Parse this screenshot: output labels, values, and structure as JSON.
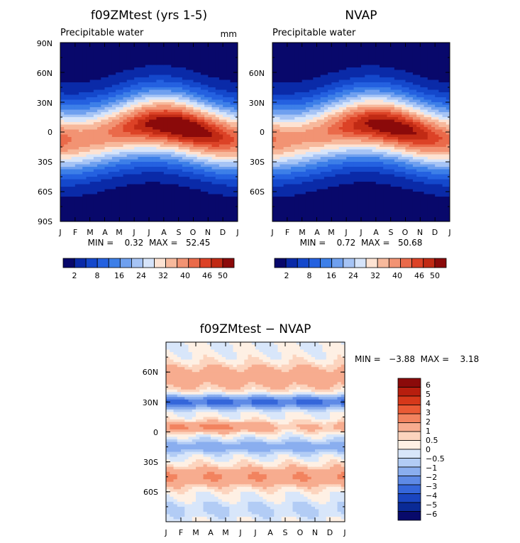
{
  "chart_data": [
    {
      "type": "heatmap",
      "title": "f09ZMtest (yrs 1-5)",
      "subtitle": "Precipitable water",
      "units": "mm",
      "x_ticks": [
        "J",
        "F",
        "M",
        "A",
        "M",
        "J",
        "J",
        "A",
        "S",
        "O",
        "N",
        "D",
        "J"
      ],
      "y_ticks": [
        "90N",
        "60N",
        "30N",
        "0",
        "30S",
        "60S",
        "90S"
      ],
      "stats_label": "MIN =    0.32  MAX =   52.45",
      "min": 0.32,
      "max": 52.45,
      "colorbar_labels": [
        "2",
        "8",
        "16",
        "24",
        "32",
        "40",
        "46",
        "50"
      ],
      "field": {
        "eq_max": 52.45,
        "season_shift": 8
      }
    },
    {
      "type": "heatmap",
      "title": "NVAP",
      "subtitle": "Precipitable water",
      "x_ticks": [
        "J",
        "F",
        "M",
        "A",
        "M",
        "J",
        "J",
        "A",
        "S",
        "O",
        "N",
        "D",
        "J"
      ],
      "y_ticks": [
        "60N",
        "30N",
        "0",
        "30S",
        "60S"
      ],
      "stats_label": "MIN =    0.72  MAX =   50.68",
      "min": 0.72,
      "max": 50.68,
      "colorbar_labels": [
        "2",
        "8",
        "16",
        "24",
        "32",
        "40",
        "46",
        "50"
      ],
      "field": {
        "eq_max": 50.68,
        "season_shift": 8
      }
    },
    {
      "type": "heatmap",
      "title": "f09ZMtest − NVAP",
      "x_ticks": [
        "J",
        "F",
        "M",
        "A",
        "M",
        "J",
        "J",
        "A",
        "S",
        "O",
        "N",
        "D",
        "J"
      ],
      "y_ticks": [
        "60N",
        "30N",
        "0",
        "30S",
        "60S"
      ],
      "stats_label": "MIN =   −3.88  MAX =    3.18",
      "min": -3.88,
      "max": 3.18,
      "colorbar_labels": [
        "6",
        "5",
        "4",
        "3",
        "2",
        "1",
        "0.5",
        "0",
        "−0.5",
        "−1",
        "−2",
        "−3",
        "−4",
        "−5",
        "−6"
      ]
    }
  ],
  "colors": {
    "abs_scale": [
      "#08086b",
      "#0a2aa8",
      "#1448cc",
      "#2461e0",
      "#3d7fe8",
      "#6fa0ef",
      "#a6c4f5",
      "#d6e4fa",
      "#fde3d3",
      "#f7b99c",
      "#f29373",
      "#ea6a4a",
      "#dc4226",
      "#c12a14",
      "#8b0a0a"
    ],
    "diff_scale": [
      "#8b0a0a",
      "#b71e0e",
      "#d6381a",
      "#ea5a35",
      "#f2835f",
      "#f7ac8f",
      "#fcd4be",
      "#fef0e4",
      "#d8e6fa",
      "#b2ccf5",
      "#8aaeef",
      "#5e8ae6",
      "#3566da",
      "#1a45c0",
      "#0a2a96",
      "#080a6b"
    ]
  }
}
